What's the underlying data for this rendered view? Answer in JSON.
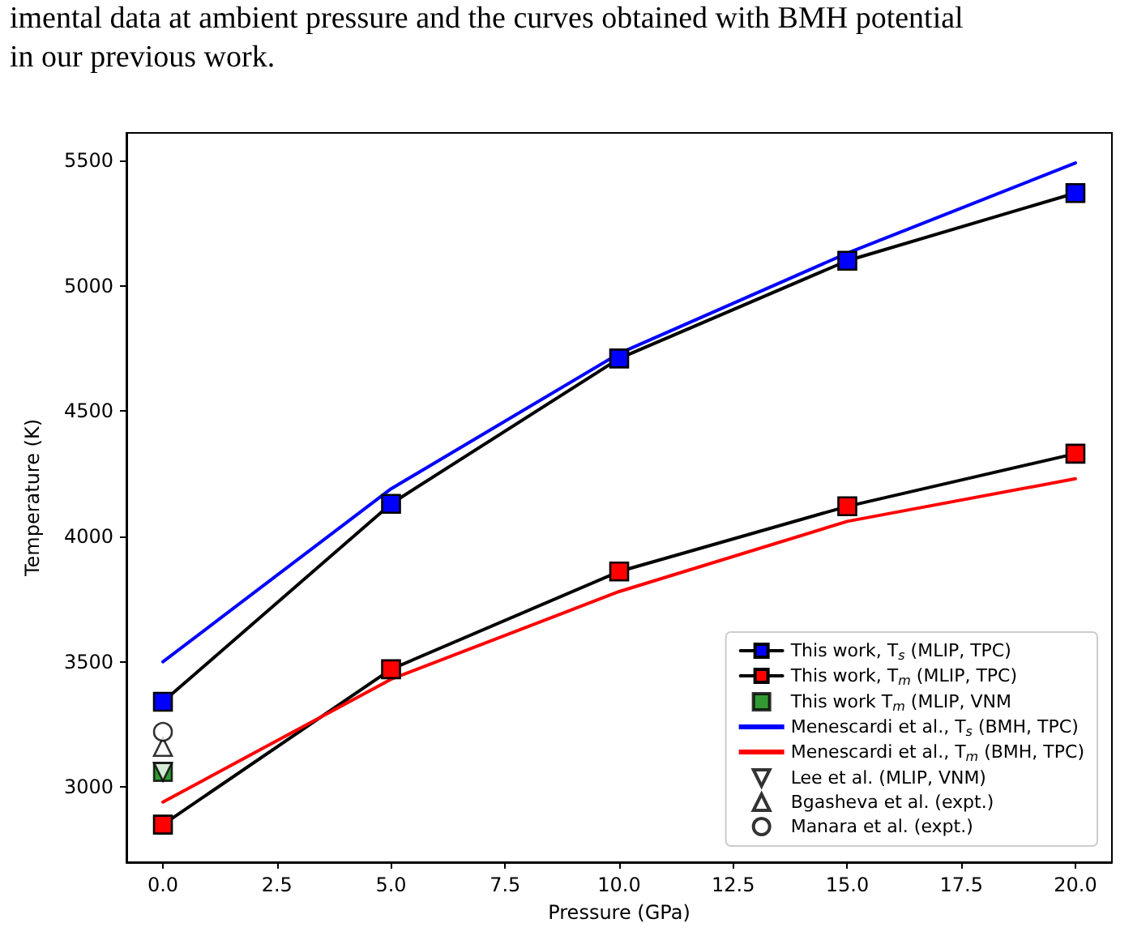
{
  "chart_data": {
    "type": "line",
    "annotations": [
      "imental data at ambient pressure and the curves obtained with BMH potential",
      "in our previous work."
    ],
    "xlabel": "Pressure (GPa)",
    "ylabel": "Temperature (K)",
    "xlim": [
      -0.8,
      20.8
    ],
    "ylim": [
      2700,
      5610
    ],
    "xticks": [
      {
        "value": 0,
        "label": "0.0"
      },
      {
        "value": 2.5,
        "label": "2.5"
      },
      {
        "value": 5,
        "label": "5.0"
      },
      {
        "value": 7.5,
        "label": "7.5"
      },
      {
        "value": 10,
        "label": "10.0"
      },
      {
        "value": 12.5,
        "label": "12.5"
      },
      {
        "value": 15,
        "label": "15.0"
      },
      {
        "value": 17.5,
        "label": "17.5"
      },
      {
        "value": 20,
        "label": "20.0"
      }
    ],
    "yticks": [
      3000,
      3500,
      4000,
      4500,
      5000,
      5500
    ],
    "grid": false,
    "legend": "bottom right",
    "series": [
      {
        "name": "This work, T$_{s}$ (MLIP, TPC)",
        "type": "line",
        "marker": "square",
        "color": "#000000",
        "colors": [
          "#0000ff",
          "#0000ff",
          "#0000ff",
          "#0000ff",
          "#0000ff"
        ],
        "x": [
          0,
          5,
          10,
          15,
          20
        ],
        "values": [
          3340,
          4130,
          4710,
          5100,
          5370
        ]
      },
      {
        "name": "This work, T$_{m}$ (MLIP, TPC)",
        "type": "line",
        "marker": "square",
        "color": "#000000",
        "colors": [
          "#ff0000",
          "#ff0000",
          "#ff0000",
          "#ff0000",
          "#ff0000"
        ],
        "x": [
          0,
          5,
          10,
          15,
          20
        ],
        "values": [
          2850,
          3470,
          3860,
          4120,
          4330
        ]
      },
      {
        "name": "This work T$_{m}$ (MLIP, VNM",
        "type": "scatter",
        "marker": "square",
        "color": "#008000",
        "x": [
          0
        ],
        "values": [
          3060
        ]
      },
      {
        "name": "Menescardi et al., T$_{s}$ (BMH, TPC)",
        "type": "line",
        "marker": "none",
        "color": "#0000ff",
        "x": [
          0,
          5,
          10,
          15,
          20
        ],
        "values": [
          3500,
          4190,
          4730,
          5130,
          5490
        ]
      },
      {
        "name": "Menescardi et al., T$_{m}$ (BMH, TPC)",
        "type": "line",
        "marker": "none",
        "color": "#ff0000",
        "x": [
          0,
          5,
          10,
          15,
          20
        ],
        "values": [
          2940,
          3430,
          3780,
          4060,
          4230
        ]
      },
      {
        "name": "Lee et al. (MLIP, VNM)",
        "type": "scatter",
        "marker": "triangle_down",
        "color": "#000000",
        "colors": [
          "#ffffff"
        ],
        "x": [
          0
        ],
        "values": [
          3060
        ]
      },
      {
        "name": "Bgasheva et al. (expt.)",
        "type": "scatter",
        "marker": "triangle",
        "color": "#000000",
        "colors": [
          "#ffffff"
        ],
        "x": [
          0
        ],
        "values": [
          3160
        ]
      },
      {
        "name": "Manara et al. (expt.)",
        "type": "scatter",
        "marker": "circle",
        "color": "#000000",
        "colors": [
          "#ffffff"
        ],
        "x": [
          0
        ],
        "values": [
          3220
        ]
      }
    ]
  }
}
